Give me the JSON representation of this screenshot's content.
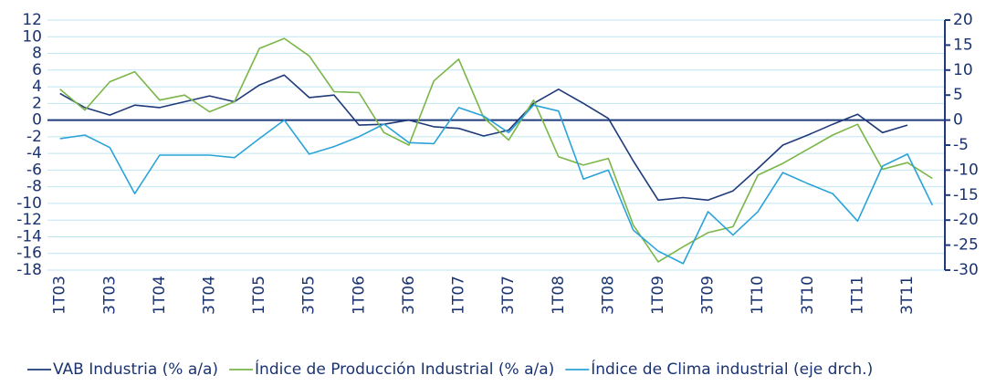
{
  "chart_data": {
    "type": "line",
    "categories": [
      "1T03",
      null,
      "3T03",
      null,
      "1T04",
      null,
      "3T04",
      null,
      "1T05",
      null,
      "3T05",
      null,
      "1T06",
      null,
      "3T06",
      null,
      "1T07",
      null,
      "3T07",
      null,
      "1T08",
      null,
      "3T08",
      null,
      "1T09",
      null,
      "3T09",
      null,
      "1T10",
      null,
      "3T10",
      null,
      "1T11",
      null,
      "3T11",
      null
    ],
    "series": [
      {
        "name": "VAB Industria (% a/a)",
        "color": "#1f3a7a",
        "axis": "y",
        "values": [
          3.2,
          1.5,
          0.6,
          1.8,
          1.5,
          2.2,
          2.9,
          2.2,
          4.2,
          5.4,
          2.7,
          3.0,
          -0.6,
          -0.5,
          0.0,
          -0.8,
          -1.0,
          -1.9,
          -1.2,
          2.0,
          3.7,
          2.0,
          0.2,
          -4.9,
          -9.6,
          -9.3,
          -9.6,
          -8.5,
          -5.8,
          -3.0,
          -1.8,
          -0.5,
          0.7,
          -1.5,
          -0.6,
          null
        ]
      },
      {
        "name": "Índice de Producción Industrial (% a/a)",
        "color": "#7ab648",
        "axis": "y",
        "values": [
          3.7,
          1.2,
          4.6,
          5.8,
          2.4,
          3.0,
          1.0,
          2.2,
          8.6,
          9.8,
          7.7,
          3.4,
          3.3,
          -1.5,
          -3.0,
          4.7,
          7.3,
          0.3,
          -2.4,
          2.4,
          -4.4,
          -5.4,
          -4.6,
          -12.6,
          -17.0,
          -15.2,
          -13.5,
          -12.8,
          -6.6,
          -5.2,
          -3.5,
          -1.8,
          -0.5,
          -5.9,
          -5.1,
          -7.0
        ]
      },
      {
        "name": "Índice de Clima industrial (eje drch.)",
        "color": "#2ba3d8",
        "axis": "y2",
        "values": [
          -3.7,
          -3.0,
          -5.5,
          -14.7,
          -7.0,
          -7.0,
          -7.0,
          -7.5,
          -3.7,
          0.0,
          -6.8,
          -5.3,
          -3.3,
          -0.8,
          -4.5,
          -4.7,
          2.5,
          0.8,
          -2.5,
          3.0,
          1.8,
          -11.8,
          -10.0,
          -22.0,
          -26.2,
          -28.7,
          -18.3,
          -23.0,
          -18.3,
          -10.5,
          -12.7,
          -14.7,
          -20.2,
          -9.2,
          -6.8,
          -17.0
        ]
      }
    ],
    "ylim": [
      -18,
      12
    ],
    "yticks": [
      -18,
      -16,
      -14,
      -12,
      -10,
      -8,
      -6,
      -4,
      -2,
      0,
      2,
      4,
      6,
      8,
      10,
      12
    ],
    "y2lim": [
      -30,
      20
    ],
    "y2ticks": [
      -30,
      -25,
      -20,
      -15,
      -10,
      -5,
      0,
      5,
      10,
      15,
      20
    ],
    "grid": true,
    "legend": "bottom"
  }
}
